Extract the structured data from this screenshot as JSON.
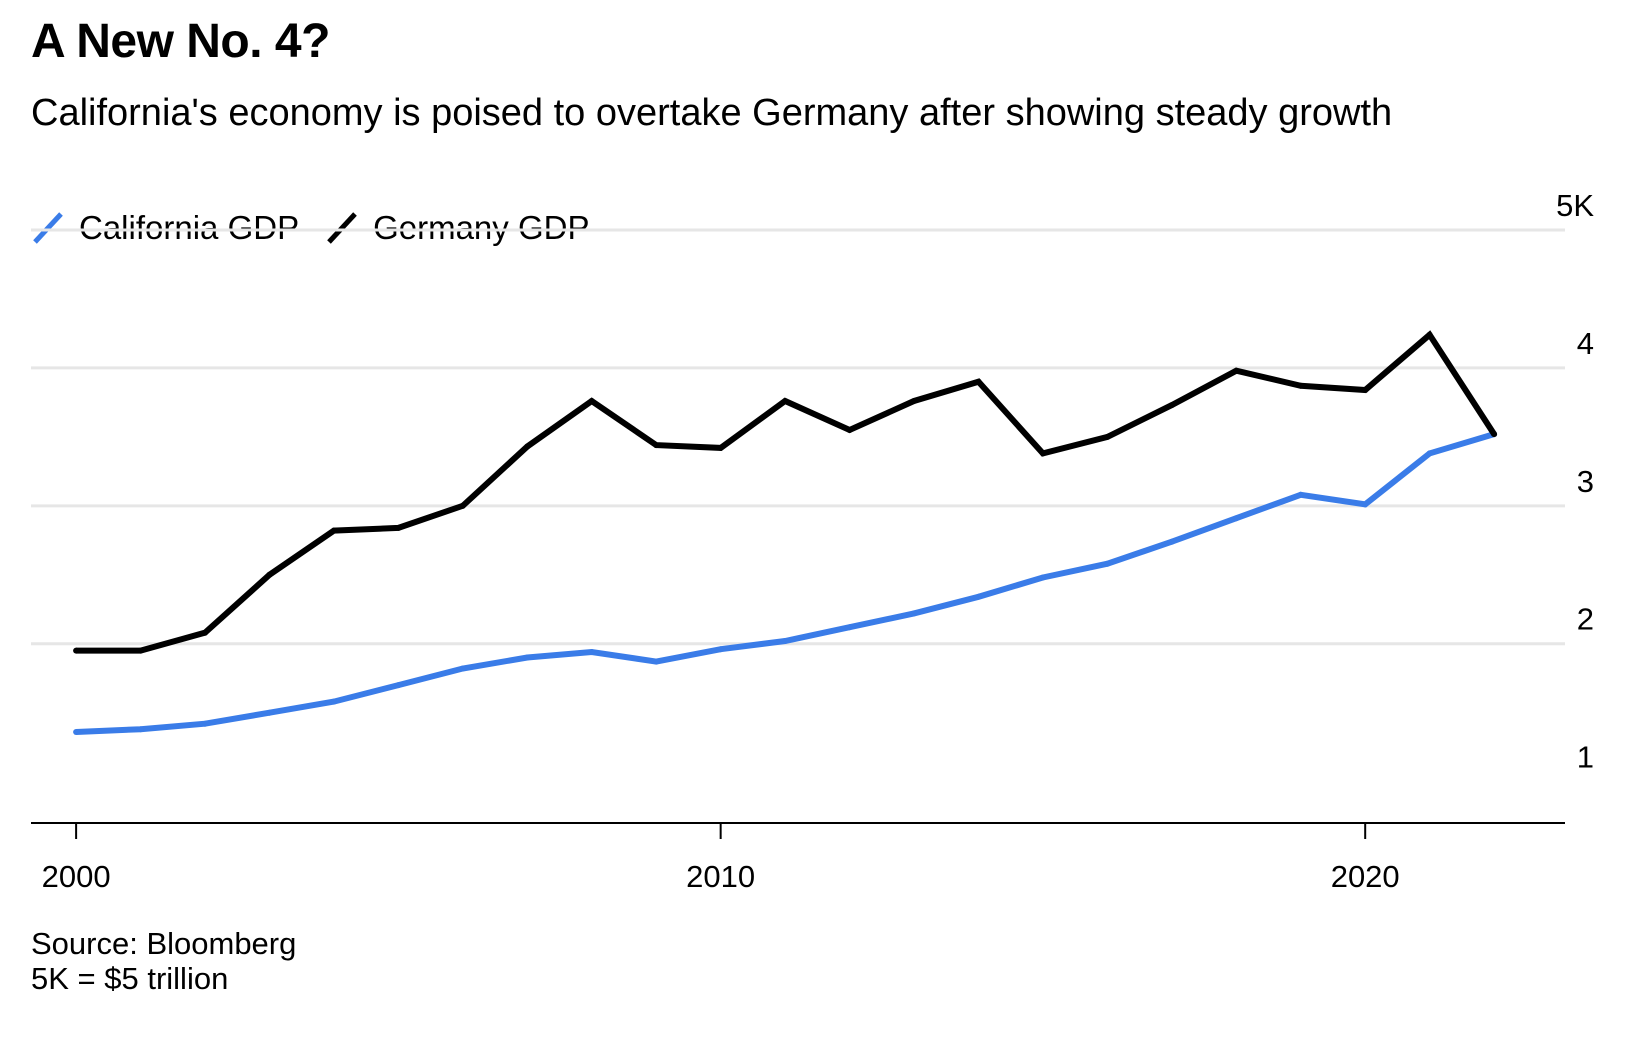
{
  "title": "A New No. 4?",
  "subtitle": "California's economy is poised to overtake Germany after showing steady growth",
  "legend": {
    "california": "California GDP",
    "germany": "Germany GDP"
  },
  "footer": {
    "source": "Source: Bloomberg",
    "note": "5K = $5 trillion"
  },
  "colors": {
    "california": "#3a7ce8",
    "germany": "#000000",
    "grid": "#e6e6e6",
    "axis": "#000000"
  },
  "chart_data": {
    "type": "line",
    "title": "A New No. 4?",
    "subtitle": "California's economy is poised to overtake Germany after showing steady growth",
    "xlabel": "",
    "ylabel": "",
    "xlim": [
      1999.3,
      2023.1
    ],
    "ylim": [
      0.7,
      5
    ],
    "x_ticks": [
      2000,
      2010,
      2020
    ],
    "x_tick_labels": [
      "2000",
      "2010",
      "2020"
    ],
    "y_ticks": [
      1,
      2,
      3,
      4,
      5
    ],
    "y_tick_labels": [
      "1",
      "2",
      "3",
      "4",
      "5K"
    ],
    "grid": true,
    "legend_position": "top-left",
    "x": [
      2000,
      2001,
      2002,
      2003,
      2004,
      2005,
      2006,
      2007,
      2008,
      2009,
      2010,
      2011,
      2012,
      2013,
      2014,
      2015,
      2016,
      2017,
      2018,
      2019,
      2020,
      2021,
      2022
    ],
    "series": [
      {
        "name": "California GDP",
        "values": [
          1.36,
          1.38,
          1.42,
          1.5,
          1.58,
          1.7,
          1.82,
          1.9,
          1.94,
          1.87,
          1.96,
          2.02,
          2.12,
          2.22,
          2.34,
          2.48,
          2.58,
          2.74,
          2.91,
          3.08,
          3.01,
          3.38,
          3.52
        ]
      },
      {
        "name": "Germany GDP",
        "values": [
          1.95,
          1.95,
          2.08,
          2.5,
          2.82,
          2.84,
          3.0,
          3.43,
          3.76,
          3.44,
          3.42,
          3.76,
          3.55,
          3.76,
          3.9,
          3.38,
          3.5,
          3.73,
          3.98,
          3.87,
          3.84,
          4.24,
          3.52
        ]
      }
    ]
  }
}
